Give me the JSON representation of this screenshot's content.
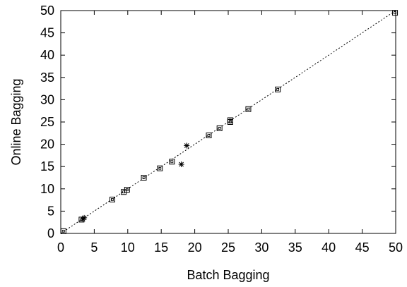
{
  "chart_data": {
    "type": "scatter",
    "xlabel": "Batch Bagging",
    "ylabel": "Online Bagging",
    "xlim": [
      0,
      50
    ],
    "ylim": [
      0,
      50
    ],
    "xticks": [
      "0",
      "5",
      "10",
      "15",
      "20",
      "25",
      "30",
      "35",
      "40",
      "45",
      "50"
    ],
    "yticks": [
      "0",
      "5",
      "10",
      "15",
      "20",
      "25",
      "30",
      "35",
      "40",
      "45",
      "50"
    ],
    "grid": false,
    "legend": "none",
    "reference_line": {
      "style": "dotted",
      "from": [
        0,
        0
      ],
      "to": [
        50,
        50
      ]
    },
    "series": [
      {
        "marker": "square",
        "points": [
          [
            0.4,
            0.5
          ],
          [
            3.1,
            3.1
          ],
          [
            7.7,
            7.6
          ],
          [
            9.4,
            9.3
          ],
          [
            9.9,
            9.8
          ],
          [
            12.4,
            12.5
          ],
          [
            14.8,
            14.6
          ],
          [
            16.6,
            16.1
          ],
          [
            22.1,
            22.0
          ],
          [
            23.7,
            23.6
          ],
          [
            25.3,
            25.0
          ],
          [
            25.3,
            25.4
          ],
          [
            28.0,
            27.9
          ],
          [
            32.4,
            32.3
          ],
          [
            49.9,
            49.5
          ]
        ]
      },
      {
        "marker": "asterisk",
        "points": [
          [
            3.5,
            3.5
          ],
          [
            3.3,
            3.2
          ],
          [
            18.0,
            15.5
          ],
          [
            18.8,
            19.7
          ]
        ]
      }
    ]
  }
}
